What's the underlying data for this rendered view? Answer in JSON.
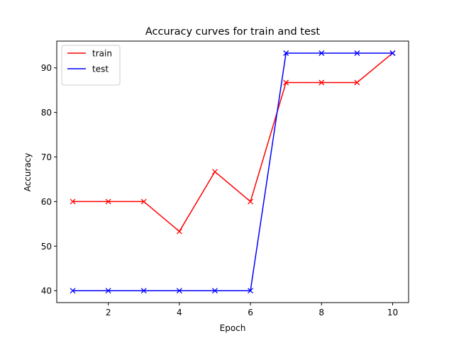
{
  "chart_data": {
    "type": "line",
    "title": "Accuracy curves for train and test",
    "xlabel": "Epoch",
    "ylabel": "Accuracy",
    "x": [
      1,
      2,
      3,
      4,
      5,
      6,
      7,
      8,
      9,
      10
    ],
    "xticks": [
      2,
      4,
      6,
      8,
      10
    ],
    "yticks": [
      40,
      50,
      60,
      70,
      80,
      90
    ],
    "xlim": [
      0.55,
      10.45
    ],
    "ylim": [
      37.33,
      96.0
    ],
    "grid": false,
    "legend_position": "upper-left",
    "marker": "x",
    "series": [
      {
        "name": "train",
        "color": "#ff0000",
        "values": [
          60.0,
          60.0,
          60.0,
          53.3,
          66.7,
          60.0,
          86.7,
          86.7,
          86.7,
          93.3
        ]
      },
      {
        "name": "test",
        "color": "#0000ff",
        "values": [
          40.0,
          40.0,
          40.0,
          40.0,
          40.0,
          40.0,
          93.3,
          93.3,
          93.3,
          93.3
        ]
      }
    ]
  }
}
